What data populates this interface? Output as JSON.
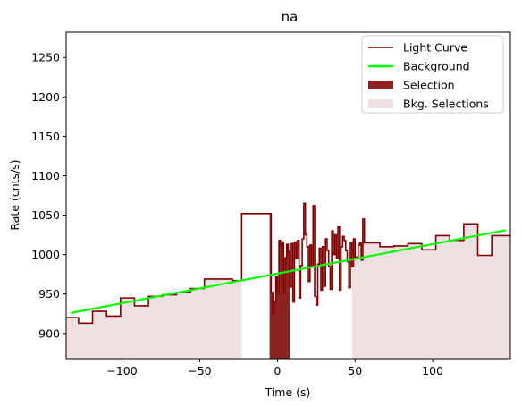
{
  "chart_data": {
    "type": "line",
    "title": "na",
    "xlabel": "Time (s)",
    "ylabel": "Rate (cnts/s)",
    "xlim": [
      -136,
      150
    ],
    "ylim": [
      868,
      1282
    ],
    "xticks": [
      -100,
      -50,
      0,
      50,
      100
    ],
    "yticks": [
      900,
      950,
      1000,
      1050,
      1100,
      1150,
      1200,
      1250
    ],
    "grid": false,
    "legend_position": "top-right",
    "colors": {
      "light_curve": "#800000",
      "background": "#00ff00",
      "selection": "#8b2323",
      "bkg_selection": "#efe1e1"
    },
    "series": [
      {
        "name": "Light Curve",
        "style": "step",
        "points": [
          [
            -136,
            920
          ],
          [
            -128,
            913
          ],
          [
            -119,
            928
          ],
          [
            -110,
            922
          ],
          [
            -101,
            945
          ],
          [
            -92,
            935
          ],
          [
            -83,
            947
          ],
          [
            -74,
            949
          ],
          [
            -65,
            952
          ],
          [
            -56,
            957
          ],
          [
            -47,
            969
          ],
          [
            -38,
            969
          ],
          [
            -29,
            967
          ],
          [
            -23,
            1052
          ],
          [
            -14,
            1052
          ],
          [
            -4,
            952
          ],
          [
            -3,
            925
          ],
          [
            -2,
            941
          ],
          [
            -1,
            972
          ],
          [
            0,
            951
          ],
          [
            1,
            1018
          ],
          [
            2,
            1012
          ],
          [
            3,
            1016
          ],
          [
            4,
            951
          ],
          [
            5,
            996
          ],
          [
            6,
            1013
          ],
          [
            7,
            1004
          ],
          [
            8,
            959
          ],
          [
            9,
            1014
          ],
          [
            10,
            940
          ],
          [
            11,
            1016
          ],
          [
            12,
            995
          ],
          [
            13,
            1018
          ],
          [
            14,
            945
          ],
          [
            15,
            986
          ],
          [
            16,
            1020
          ],
          [
            17,
            1065
          ],
          [
            18,
            1025
          ],
          [
            19,
            1010
          ],
          [
            20,
            966
          ],
          [
            21,
            1012
          ],
          [
            22,
            985
          ],
          [
            23,
            1062
          ],
          [
            24,
            947
          ],
          [
            25,
            936
          ],
          [
            26,
            988
          ],
          [
            27,
            1008
          ],
          [
            28,
            955
          ],
          [
            29,
            1010
          ],
          [
            30,
            960
          ],
          [
            31,
            1020
          ],
          [
            32,
            1005
          ],
          [
            33,
            985
          ],
          [
            34,
            956
          ],
          [
            35,
            1030
          ],
          [
            36,
            1000
          ],
          [
            37,
            1025
          ],
          [
            38,
            996
          ],
          [
            39,
            1035
          ],
          [
            40,
            955
          ],
          [
            41,
            1010
          ],
          [
            42,
            1023
          ],
          [
            43,
            1018
          ],
          [
            44,
            1005
          ],
          [
            45,
            991
          ],
          [
            46,
            958
          ],
          [
            47,
            1015
          ],
          [
            48,
            985
          ],
          [
            49,
            1020
          ],
          [
            50,
            997
          ],
          [
            51,
            995
          ],
          [
            52,
            1012
          ],
          [
            53,
            1015
          ],
          [
            54,
            993
          ],
          [
            55,
            1045
          ],
          [
            56,
            1015
          ],
          [
            58,
            1015
          ],
          [
            66,
            1010
          ],
          [
            75,
            1011
          ],
          [
            84,
            1014
          ],
          [
            93,
            1006
          ],
          [
            102,
            1024
          ],
          [
            111,
            1018
          ],
          [
            120,
            1039
          ],
          [
            129,
            999
          ],
          [
            138,
            1024
          ],
          [
            147,
            1024
          ]
        ]
      },
      {
        "name": "Background",
        "style": "line",
        "points": [
          [
            -133,
            926
          ],
          [
            147,
            1031
          ]
        ]
      }
    ],
    "selections": [
      {
        "name": "Selection",
        "x_range": [
          -5,
          8
        ]
      }
    ],
    "bkg_selections": [
      {
        "name": "Bkg. Selections",
        "x_range": [
          -136,
          -23
        ]
      },
      {
        "name": "Bkg. Selections",
        "x_range": [
          48,
          150
        ]
      }
    ],
    "legend": [
      "Light Curve",
      "Background",
      "Selection",
      "Bkg. Selections"
    ]
  }
}
